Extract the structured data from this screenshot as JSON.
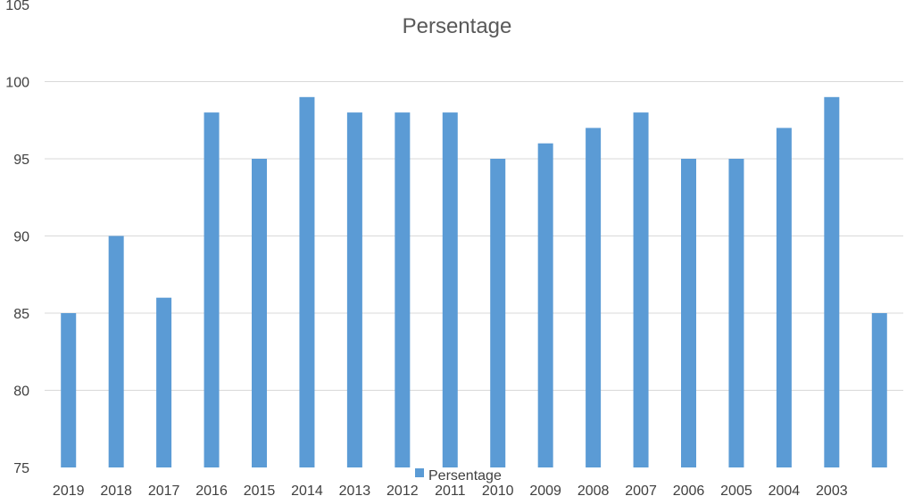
{
  "chart_data": {
    "type": "bar",
    "title": "Persentage",
    "xlabel": "",
    "ylabel": "",
    "ylim": [
      75,
      105
    ],
    "yticks": [
      "75",
      "80",
      "85",
      "90",
      "95",
      "100",
      "105"
    ],
    "categories": [
      "2019",
      "2018",
      "2017",
      "2016",
      "2015",
      "2014",
      "2013",
      "2012",
      "2011",
      "2010",
      "2009",
      "2008",
      "2007",
      "2006",
      "2005",
      "2004",
      "2003",
      ""
    ],
    "series": [
      {
        "name": "Persentage",
        "values": [
          85,
          90,
          86,
          98,
          95,
          99,
          98,
          98,
          98,
          95,
          96,
          97,
          98,
          95,
          95,
          97,
          99,
          85
        ]
      }
    ],
    "grid": true,
    "legend": "bottom",
    "colors": {
      "bar": "#5b9bd5",
      "grid": "#d9d9d9",
      "text": "#404040",
      "title": "#595959"
    }
  }
}
